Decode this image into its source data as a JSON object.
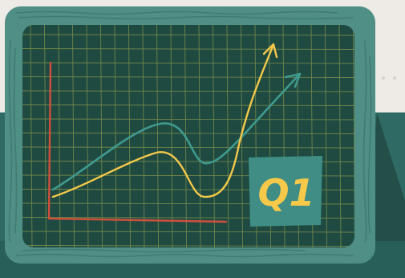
{
  "badge": {
    "label": "Q1"
  },
  "colors": {
    "wall": "#eeebe6",
    "floor": "#2f6b64",
    "frame": "#4f8f86",
    "board": "#1e4a42",
    "grid": "#7f8f4a",
    "axis": "#d0503c",
    "line_yellow": "#f3c84a",
    "line_teal": "#3f9a8f",
    "badge_bg": "#3f8d84",
    "badge_text": "#f6c94a"
  }
}
